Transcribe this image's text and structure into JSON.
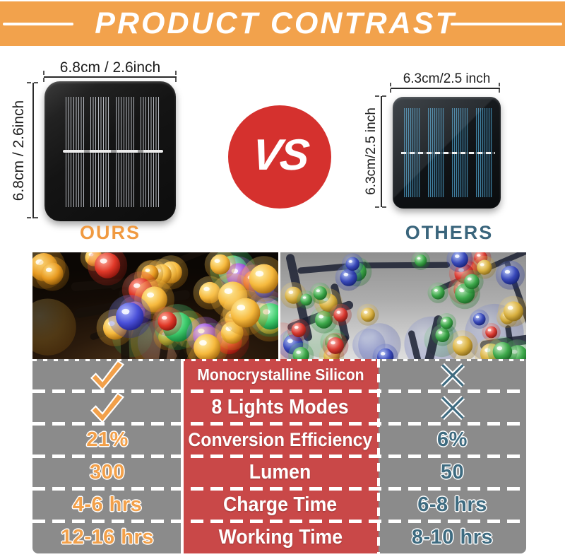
{
  "banner": {
    "title": "PRODUCT CONTRAST"
  },
  "comparison": {
    "vs_label": "VS",
    "ours": {
      "label": "OURS",
      "width_dim": "6.8cm / 2.6inch",
      "height_dim": "6.8cm / 2.6inch"
    },
    "others": {
      "label": "OTHERS",
      "width_dim": "6.3cm/2.5 inch",
      "height_dim": "6.3cm/2.5 inch"
    }
  },
  "table": {
    "rows": [
      {
        "ours": "check-icon",
        "feature": "Monocrystalline Silicon",
        "others": "cross-icon"
      },
      {
        "ours": "check-icon",
        "feature": "8 Lights Modes",
        "others": "cross-icon"
      },
      {
        "ours": "21%",
        "feature": "Conversion Efficiency",
        "others": "6%"
      },
      {
        "ours": "300",
        "feature": "Lumen",
        "others": "50"
      },
      {
        "ours": "4-6 hrs",
        "feature": "Charge Time",
        "others": "6-8 hrs"
      },
      {
        "ours": "12-16 hrs",
        "feature": "Working Time",
        "others": "8-10 hrs"
      }
    ]
  },
  "colors": {
    "banner_bg": "#F2A24C",
    "vs_red": "#D5312E",
    "table_center_bg": "#C94848",
    "table_side_bg": "#8B8B8B",
    "ours_accent": "#F2A04A",
    "others_accent": "#3A657C"
  }
}
